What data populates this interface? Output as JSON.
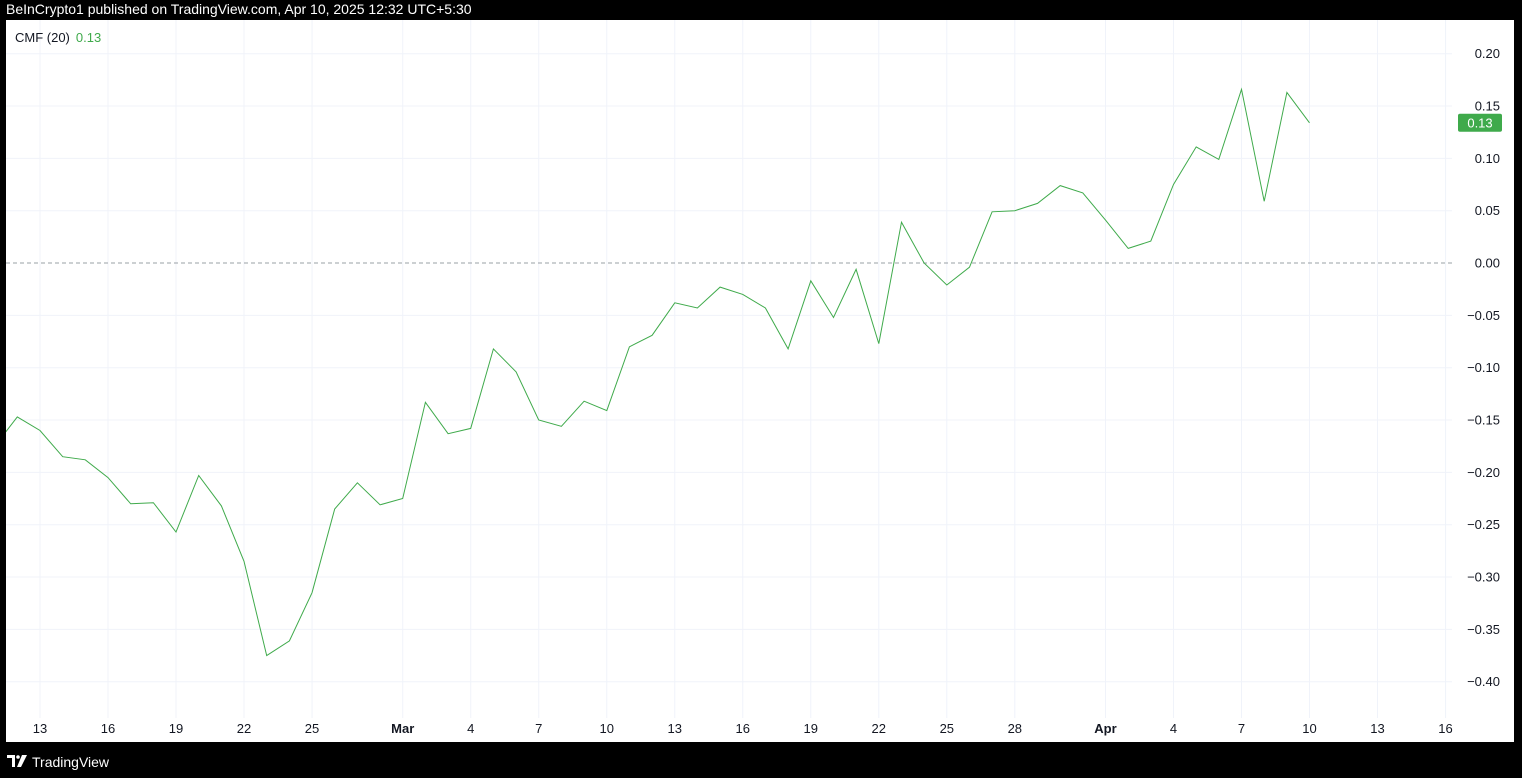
{
  "header": {
    "publisher_line": "BeInCrypto1 published on TradingView.com, Apr 10, 2025 12:32 UTC+5:30"
  },
  "legend": {
    "label": "CMF (20)",
    "value": "0.13"
  },
  "footer": {
    "brand": "TradingView"
  },
  "colors": {
    "line": "#3faa4b",
    "badge": "#3faa4b",
    "grid": "#f0f3fa",
    "zero_line": "#9aa0a6"
  },
  "chart_data": {
    "type": "line",
    "title": "",
    "indicator": "CMF (20)",
    "ylim": [
      -0.4,
      0.2
    ],
    "y_ticks": [
      "0.20",
      "0.15",
      "0.10",
      "0.05",
      "0.00",
      "−0.05",
      "−0.10",
      "−0.15",
      "−0.20",
      "−0.25",
      "−0.30",
      "−0.35",
      "−0.40"
    ],
    "y_tick_values": [
      0.2,
      0.15,
      0.1,
      0.05,
      0.0,
      -0.05,
      -0.1,
      -0.15,
      -0.2,
      -0.25,
      -0.3,
      -0.35,
      -0.4
    ],
    "x_ticks": [
      "13",
      "16",
      "19",
      "22",
      "25",
      "Mar",
      "4",
      "7",
      "10",
      "13",
      "16",
      "19",
      "22",
      "25",
      "28",
      "Apr",
      "4",
      "7",
      "10",
      "13",
      "16"
    ],
    "x_tick_dates": [
      "2025-02-13",
      "2025-02-16",
      "2025-02-19",
      "2025-02-22",
      "2025-02-25",
      "2025-03-01",
      "2025-03-04",
      "2025-03-07",
      "2025-03-10",
      "2025-03-13",
      "2025-03-16",
      "2025-03-19",
      "2025-03-22",
      "2025-03-25",
      "2025-03-28",
      "2025-04-01",
      "2025-04-04",
      "2025-04-07",
      "2025-04-10",
      "2025-04-13",
      "2025-04-16"
    ],
    "x_bold_ticks": [
      "Mar",
      "Apr"
    ],
    "x_range": [
      "2025-02-11",
      "2025-04-16"
    ],
    "reference_line": 0.0,
    "last_value_label": "0.13",
    "grid": true,
    "series": [
      {
        "x": [
          "2025-02-11",
          "2025-02-12",
          "2025-02-13",
          "2025-02-14",
          "2025-02-15",
          "2025-02-16",
          "2025-02-17",
          "2025-02-18",
          "2025-02-19",
          "2025-02-20",
          "2025-02-21",
          "2025-02-22",
          "2025-02-23",
          "2025-02-24",
          "2025-02-25",
          "2025-02-26",
          "2025-02-27",
          "2025-02-28",
          "2025-03-01",
          "2025-03-02",
          "2025-03-03",
          "2025-03-04",
          "2025-03-05",
          "2025-03-06",
          "2025-03-07",
          "2025-03-08",
          "2025-03-09",
          "2025-03-10",
          "2025-03-11",
          "2025-03-12",
          "2025-03-13",
          "2025-03-14",
          "2025-03-15",
          "2025-03-16",
          "2025-03-17",
          "2025-03-18",
          "2025-03-19",
          "2025-03-20",
          "2025-03-21",
          "2025-03-22",
          "2025-03-23",
          "2025-03-24",
          "2025-03-25",
          "2025-03-26",
          "2025-03-27",
          "2025-03-28",
          "2025-03-29",
          "2025-03-30",
          "2025-03-31",
          "2025-04-01",
          "2025-04-02",
          "2025-04-03",
          "2025-04-04",
          "2025-04-05",
          "2025-04-06",
          "2025-04-07",
          "2025-04-08",
          "2025-04-09",
          "2025-04-10"
        ],
        "values": [
          -0.175,
          -0.147,
          -0.16,
          -0.185,
          -0.188,
          -0.205,
          -0.23,
          -0.229,
          -0.257,
          -0.203,
          -0.232,
          -0.285,
          -0.375,
          -0.361,
          -0.315,
          -0.235,
          -0.21,
          -0.231,
          -0.225,
          -0.133,
          -0.163,
          -0.158,
          -0.082,
          -0.104,
          -0.15,
          -0.156,
          -0.132,
          -0.141,
          -0.08,
          -0.069,
          -0.038,
          -0.043,
          -0.023,
          -0.03,
          -0.043,
          -0.082,
          -0.017,
          -0.052,
          -0.006,
          -0.077,
          0.039,
          0.0,
          -0.021,
          -0.004,
          0.049,
          0.05,
          0.057,
          0.074,
          0.067,
          0.041,
          0.014,
          0.021,
          0.075,
          0.111,
          0.099,
          0.166,
          0.059,
          0.163,
          0.134
        ]
      }
    ]
  }
}
